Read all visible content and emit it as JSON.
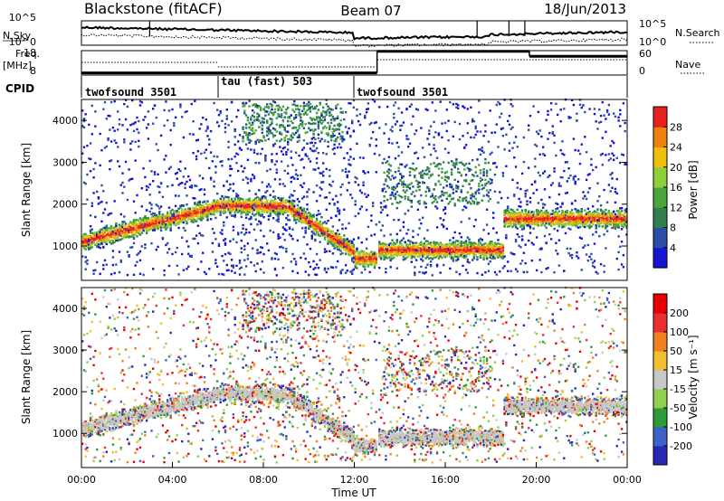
{
  "header": {
    "station": "Blackstone (fitACF)",
    "beam": "Beam 07",
    "date": "18/Jun/2013"
  },
  "top_panels": {
    "nsky_label": "N.Sky",
    "nsky_ticks": [
      "10^5",
      "10^0"
    ],
    "nsearch_label": "N.Search",
    "nsearch_ticks": [
      "10^5",
      "10^0"
    ],
    "freq_label_1": "Freq.",
    "freq_label_2": "[MHz]",
    "freq_ticks": [
      "18",
      "8"
    ],
    "nave_label": "Nave",
    "nave_ticks": [
      "60",
      "0"
    ],
    "cpid_label": "CPID",
    "cpid_segments": [
      {
        "label": "twofsound 3501",
        "start": 0.0
      },
      {
        "label": "tau (fast) 503",
        "start": 6.0
      },
      {
        "label": "twofsound 3501",
        "start": 12.0
      }
    ]
  },
  "chart_data": [
    {
      "type": "heatmap",
      "ylabel": "Slant Range [km]",
      "ylim": [
        180,
        4500
      ],
      "yticks": [
        "1000",
        "2000",
        "3000",
        "4000"
      ],
      "xlim": [
        0,
        24
      ],
      "colorbar": {
        "label": "Power [dB]",
        "ticks": [
          "4",
          "8",
          "12",
          "16",
          "20",
          "24",
          "28"
        ],
        "colors": [
          "#1414d2",
          "#2a4da6",
          "#2f7f4f",
          "#4aa63a",
          "#8fcf3a",
          "#f0c010",
          "#f08010",
          "#e82020"
        ]
      }
    },
    {
      "type": "heatmap",
      "ylabel": "Slant Range [km]",
      "ylim": [
        180,
        4500
      ],
      "yticks": [
        "1000",
        "2000",
        "3000",
        "4000"
      ],
      "xlim": [
        0,
        24
      ],
      "xlabel": "Time UT",
      "xticks": [
        "00:00",
        "04:00",
        "08:00",
        "12:00",
        "16:00",
        "20:00",
        "00:00"
      ],
      "colorbar": {
        "label": "Velocity [m s⁻¹]",
        "ticks": [
          "200",
          "100",
          "50",
          "15",
          "-15",
          "-50",
          "-100",
          "-200"
        ],
        "colors": [
          "#2828b4",
          "#3a62c8",
          "#2f9a3a",
          "#8fd050",
          "#c8c8c8",
          "#f0c030",
          "#f08020",
          "#e83030",
          "#e80000"
        ]
      }
    }
  ]
}
